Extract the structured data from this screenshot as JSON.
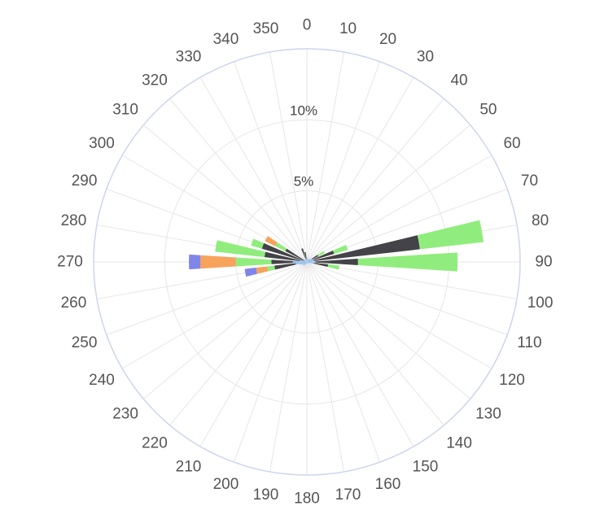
{
  "chart_data": {
    "type": "bar",
    "subtype": "polar-stacked-column",
    "title": "",
    "angle_tick_labels": [
      "0",
      "10",
      "20",
      "30",
      "40",
      "50",
      "60",
      "70",
      "80",
      "90",
      "100",
      "110",
      "120",
      "130",
      "140",
      "150",
      "160",
      "170",
      "180",
      "190",
      "200",
      "210",
      "220",
      "230",
      "240",
      "250",
      "260",
      "270",
      "280",
      "290",
      "300",
      "310",
      "320",
      "330",
      "340",
      "350"
    ],
    "radial_tick_labels": [
      "10%",
      "5%"
    ],
    "radial_range": [
      0,
      15
    ],
    "radial_ticks": [
      5,
      10,
      15
    ],
    "grid": true,
    "legend": "none",
    "directions": [
      0,
      10,
      20,
      30,
      40,
      50,
      60,
      70,
      80,
      90,
      100,
      110,
      120,
      130,
      140,
      150,
      160,
      170,
      180,
      190,
      200,
      210,
      220,
      230,
      240,
      250,
      260,
      270,
      280,
      290,
      300,
      310,
      320,
      330,
      340,
      350
    ],
    "series": [
      {
        "color": "#7cb5ec",
        "values": [
          0.2,
          0.3,
          0.2,
          0.2,
          0.25,
          0.3,
          0.4,
          0.5,
          0.5,
          0.6,
          0.5,
          0.2,
          0.2,
          0.15,
          0.1,
          0.1,
          0.1,
          0.1,
          0.1,
          0.1,
          0.15,
          0.2,
          0.3,
          0.35,
          0.3,
          0.5,
          0.8,
          1.0,
          0.5,
          0.3,
          0.2,
          0.2,
          0.2,
          0.2,
          0.2,
          0.2
        ]
      },
      {
        "color": "#434348",
        "values": [
          0,
          0,
          0,
          0,
          0,
          0,
          0.5,
          1.5,
          7.5,
          3.0,
          1.0,
          0,
          0,
          0,
          0,
          0,
          0,
          0,
          0,
          0,
          0,
          0,
          0,
          0,
          0,
          0,
          1.5,
          1.5,
          2.5,
          3.0,
          1.5,
          0,
          0,
          0,
          0.8,
          0.5
        ]
      },
      {
        "color": "#90ed7d",
        "values": [
          0,
          0,
          0,
          0,
          0,
          0,
          0.5,
          1.0,
          4.5,
          7.0,
          0.8,
          0,
          0,
          0,
          0,
          0,
          0,
          0,
          0,
          0,
          0,
          0,
          0,
          0,
          0,
          0,
          0.5,
          2.5,
          3.5,
          0.8,
          0.8,
          0,
          0,
          0,
          0,
          0
        ]
      },
      {
        "color": "#f7a35c",
        "values": [
          0,
          0,
          0,
          0,
          0,
          0,
          0,
          0,
          0,
          0,
          0,
          0,
          0,
          0,
          0,
          0,
          0,
          0,
          0,
          0,
          0,
          0,
          0,
          0,
          0,
          0,
          0.8,
          2.5,
          0,
          0,
          0.8,
          0,
          0,
          0,
          0,
          0
        ]
      },
      {
        "color": "#8085e9",
        "values": [
          0,
          0,
          0,
          0,
          0,
          0,
          0,
          0,
          0,
          0,
          0,
          0,
          0,
          0,
          0,
          0,
          0,
          0,
          0,
          0,
          0,
          0,
          0,
          0,
          0,
          0,
          0.8,
          0.8,
          0,
          0,
          0,
          0,
          0,
          0,
          0,
          0
        ]
      }
    ]
  }
}
